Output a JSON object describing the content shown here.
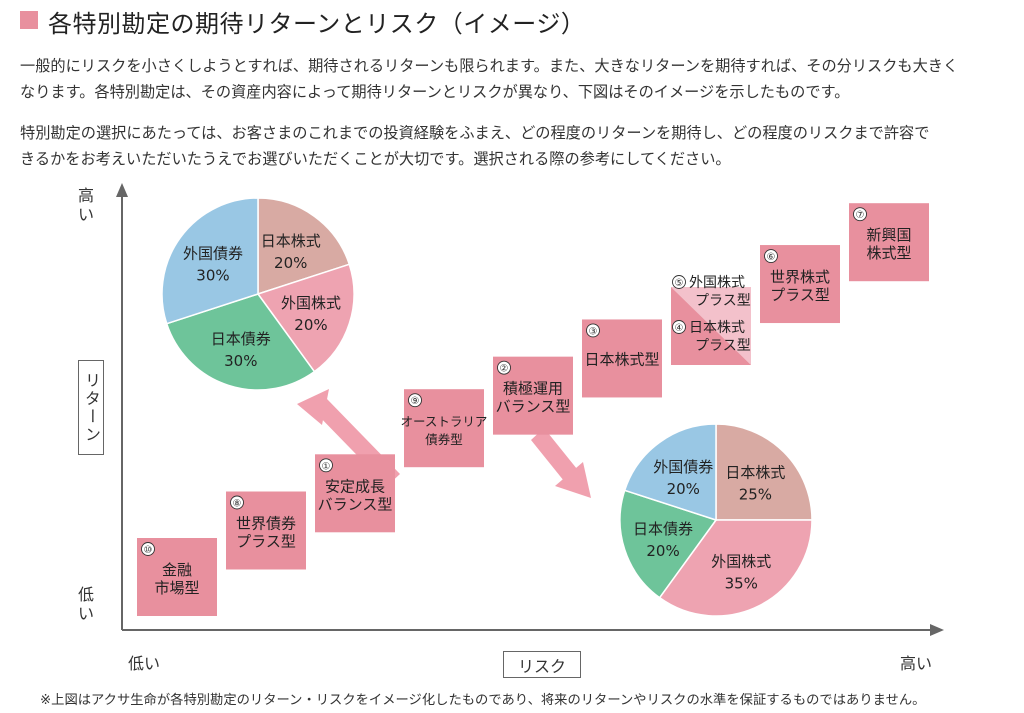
{
  "title": "各特別勘定の期待リターンとリスク（イメージ）",
  "paragraphs": [
    [
      "一般的にリスクを小さくしようとすれば、期待されるリターンも限られます。また、大きなリターンを期待すれば、その分リスクも大きく",
      "なります。各特別勘定は、その資産内容によって期待リターンとリスクが異なり、下図はそのイメージを示したものです。"
    ],
    [
      "特別勘定の選択にあたっては、お客さまのこれまでの投資経験をふまえ、どの程度のリターンを期待し、どの程度のリスクまで許容で",
      "きるかをお考えいただいたうえでお選びいただくことが大切です。選択される際の参考にしてください。"
    ]
  ],
  "footnote": "※上図はアクサ生命が各特別勘定のリターン・リスクをイメージ化したものであり、将来のリターンやリスクの水準を保証するものではありません。",
  "colors": {
    "accent": "#e8909e",
    "box": "#e8909e",
    "box_light": "#f3c1cb",
    "arrow": "#f0a0ae",
    "axis": "#666666",
    "jp_equity": "#d8aaa3",
    "foreign_equity": "#eea3b1",
    "jp_bond": "#6ec49a",
    "foreign_bond": "#99c7e4"
  },
  "chart_data": [
    {
      "type": "scatter",
      "xlabel": "リスク",
      "ylabel": "リターン",
      "x_low_label": "低い",
      "x_high_label": "高い",
      "y_high_label": [
        "高",
        "い"
      ],
      "y_low_label": [
        "低",
        "い"
      ],
      "points": [
        {
          "num": "⑩",
          "lines": [
            "金融",
            "市場型"
          ],
          "x": 1.0,
          "y": 1.0
        },
        {
          "num": "⑧",
          "lines": [
            "世界債券",
            "プラス型"
          ],
          "x": 2.0,
          "y": 2.0
        },
        {
          "num": "①",
          "lines": [
            "安定成長",
            "バランス型"
          ],
          "x": 3.0,
          "y": 2.8
        },
        {
          "num": "⑨",
          "lines": [
            "オーストラリア",
            "債券型"
          ],
          "x": 4.0,
          "y": 4.2
        },
        {
          "num": "②",
          "lines": [
            "積極運用",
            "バランス型"
          ],
          "x": 5.0,
          "y": 4.9
        },
        {
          "num": "③",
          "lines": [
            "日本株式型"
          ],
          "x": 6.0,
          "y": 5.7
        },
        {
          "num": "④",
          "lines": [
            "日本株式",
            "プラス型"
          ],
          "x": 7.0,
          "y": 6.3
        },
        {
          "num": "⑤",
          "lines": [
            "外国株式",
            "プラス型"
          ],
          "x": 7.0,
          "y": 6.7
        },
        {
          "num": "⑥",
          "lines": [
            "世界株式",
            "プラス型"
          ],
          "x": 8.0,
          "y": 7.3
        },
        {
          "num": "⑦",
          "lines": [
            "新興国",
            "株式型"
          ],
          "x": 9.0,
          "y": 8.2
        }
      ]
    },
    {
      "type": "pie",
      "slices": [
        {
          "name": "日本株式",
          "value": 20,
          "label": "20%",
          "color": "#d8aaa3"
        },
        {
          "name": "外国株式",
          "value": 20,
          "label": "20%",
          "color": "#eea3b1"
        },
        {
          "name": "日本債券",
          "value": 30,
          "label": "30%",
          "color": "#6ec49a"
        },
        {
          "name": "外国債券",
          "value": 30,
          "label": "30%",
          "color": "#99c7e4"
        }
      ]
    },
    {
      "type": "pie",
      "slices": [
        {
          "name": "日本株式",
          "value": 25,
          "label": "25%",
          "color": "#d8aaa3"
        },
        {
          "name": "外国株式",
          "value": 35,
          "label": "35%",
          "color": "#eea3b1"
        },
        {
          "name": "日本債券",
          "value": 20,
          "label": "20%",
          "color": "#6ec49a"
        },
        {
          "name": "外国債券",
          "value": 20,
          "label": "20%",
          "color": "#99c7e4"
        }
      ]
    }
  ]
}
